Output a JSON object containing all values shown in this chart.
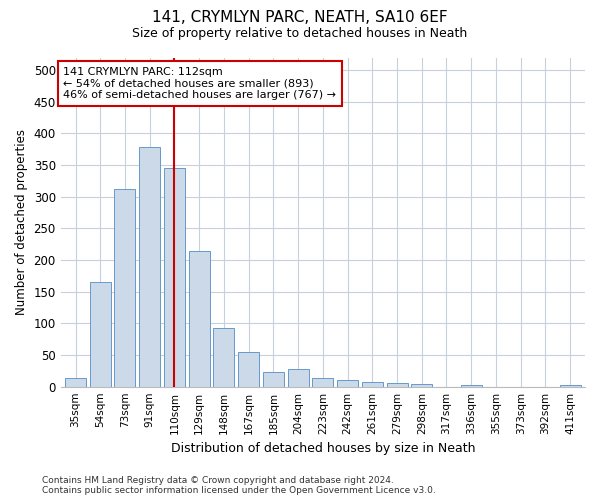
{
  "title": "141, CRYMLYN PARC, NEATH, SA10 6EF",
  "subtitle": "Size of property relative to detached houses in Neath",
  "xlabel": "Distribution of detached houses by size in Neath",
  "ylabel": "Number of detached properties",
  "bar_color": "#ccd9e8",
  "bar_edge_color": "#6699cc",
  "vline_color": "#cc0000",
  "annotation_text": "141 CRYMLYN PARC: 112sqm\n← 54% of detached houses are smaller (893)\n46% of semi-detached houses are larger (767) →",
  "annotation_box_color": "#cc0000",
  "categories": [
    "35sqm",
    "54sqm",
    "73sqm",
    "91sqm",
    "110sqm",
    "129sqm",
    "148sqm",
    "167sqm",
    "185sqm",
    "204sqm",
    "223sqm",
    "242sqm",
    "261sqm",
    "279sqm",
    "298sqm",
    "317sqm",
    "336sqm",
    "355sqm",
    "373sqm",
    "392sqm",
    "411sqm"
  ],
  "values": [
    13,
    165,
    313,
    378,
    345,
    215,
    93,
    55,
    23,
    28,
    13,
    10,
    8,
    6,
    4,
    0,
    2,
    0,
    0,
    0,
    2
  ],
  "ylim": [
    0,
    520
  ],
  "yticks": [
    0,
    50,
    100,
    150,
    200,
    250,
    300,
    350,
    400,
    450,
    500
  ],
  "footer": "Contains HM Land Registry data © Crown copyright and database right 2024.\nContains public sector information licensed under the Open Government Licence v3.0.",
  "background_color": "#ffffff",
  "grid_color": "#c8d0dc"
}
